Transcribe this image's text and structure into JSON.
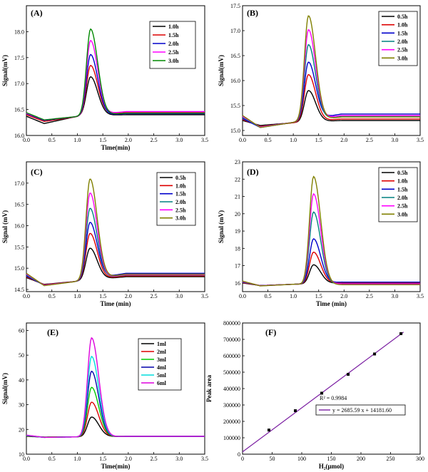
{
  "chart_data": [
    {
      "type": "line",
      "panel_label": "(A)",
      "xlabel": "Time(min)",
      "ylabel": "Signal(mV)",
      "xlim": [
        0,
        3.5
      ],
      "ylim": [
        16.0,
        18.5
      ],
      "xticks": [
        0.0,
        0.5,
        1.0,
        1.5,
        2.0,
        2.5,
        3.0,
        3.5
      ],
      "yticks": [
        16.0,
        16.5,
        17.0,
        17.5,
        18.0
      ],
      "tick_decimals": 1,
      "xtick_labels": [
        "0.0",
        "0.5",
        "1.0",
        "1.5",
        "2.0",
        "2.5",
        "3.0",
        "3.5"
      ],
      "ytick_labels": [
        "16.0",
        "16.5",
        "17.0",
        "17.5",
        "18.0"
      ],
      "legend_position": "top-right",
      "peak_center": 1.28,
      "series": [
        {
          "name": "1.0h",
          "color": "#000000",
          "peak": 17.13,
          "start": 16.37,
          "dip": 16.23,
          "rise": 16.38,
          "end": 16.4
        },
        {
          "name": "1.5h",
          "color": "#dd0000",
          "peak": 17.35,
          "start": 16.4,
          "dip": 16.27,
          "rise": 16.37,
          "end": 16.44
        },
        {
          "name": "2.0h",
          "color": "#0000cc",
          "peak": 17.56,
          "start": 16.42,
          "dip": 16.29,
          "rise": 16.37,
          "end": 16.42
        },
        {
          "name": "2.5h",
          "color": "#ff00ff",
          "peak": 17.83,
          "start": 16.43,
          "dip": 16.3,
          "rise": 16.37,
          "end": 16.46
        },
        {
          "name": "3.0h",
          "color": "#008800",
          "peak": 18.05,
          "start": 16.44,
          "dip": 16.3,
          "rise": 16.37,
          "end": 16.43
        }
      ]
    },
    {
      "type": "line",
      "panel_label": "(B)",
      "xlabel": "",
      "ylabel": "Signal(mV)",
      "xlim": [
        0,
        3.5
      ],
      "ylim": [
        14.9,
        17.5
      ],
      "xticks": [
        0.0,
        0.5,
        1.0,
        1.5,
        2.0,
        2.5,
        3.0,
        3.5
      ],
      "yticks": [
        15.0,
        15.5,
        16.0,
        16.5,
        17.0,
        17.5
      ],
      "tick_decimals": 1,
      "xtick_labels": [
        "0.0",
        "0.5",
        "1.0",
        "1.5",
        "2.0",
        "2.5",
        "3.0",
        "3.5"
      ],
      "ytick_labels": [
        "15.0",
        "15.5",
        "16.0",
        "16.5",
        "17.0",
        "17.5"
      ],
      "legend_position": "top-right",
      "peak_center": 1.32,
      "series": [
        {
          "name": "0.5h",
          "color": "#000000",
          "peak": 15.8,
          "start": 15.2,
          "dip": 15.1,
          "rise": 15.16,
          "end": 15.2
        },
        {
          "name": "1.0h",
          "color": "#dd0000",
          "peak": 16.12,
          "start": 15.22,
          "dip": 15.08,
          "rise": 15.16,
          "end": 15.23
        },
        {
          "name": "1.5h",
          "color": "#0000cc",
          "peak": 16.37,
          "start": 15.24,
          "dip": 15.06,
          "rise": 15.17,
          "end": 15.33
        },
        {
          "name": "2.0h",
          "color": "#008080",
          "peak": 16.72,
          "start": 15.26,
          "dip": 15.07,
          "rise": 15.17,
          "end": 15.28
        },
        {
          "name": "2.5h",
          "color": "#ff00ff",
          "peak": 17.02,
          "start": 15.28,
          "dip": 15.07,
          "rise": 15.17,
          "end": 15.3
        },
        {
          "name": "3.0h",
          "color": "#808000",
          "peak": 17.3,
          "start": 15.3,
          "dip": 15.06,
          "rise": 15.17,
          "end": 15.27
        }
      ]
    },
    {
      "type": "line",
      "panel_label": "(C)",
      "xlabel": "Time (min)",
      "ylabel": "Signal (mV)",
      "xlim": [
        0,
        3.5
      ],
      "ylim": [
        14.45,
        17.5
      ],
      "xticks": [
        0.0,
        0.5,
        1.0,
        1.5,
        2.0,
        2.5,
        3.0,
        3.5
      ],
      "yticks": [
        14.5,
        15.0,
        15.5,
        16.0,
        16.5,
        17.0
      ],
      "tick_decimals": 1,
      "xtick_labels": [
        "0.0",
        "0.5",
        "1.0",
        "1.5",
        "2.0",
        "2.5",
        "3.0",
        "3.5"
      ],
      "ytick_labels": [
        "14.5",
        "15.0",
        "15.5",
        "16.0",
        "16.5",
        "17.0"
      ],
      "legend_position": "top-right",
      "peak_center": 1.27,
      "series": [
        {
          "name": "0.5h",
          "color": "#000000",
          "peak": 15.47,
          "start": 14.78,
          "dip": 14.62,
          "rise": 14.7,
          "end": 14.8
        },
        {
          "name": "1.0h",
          "color": "#dd0000",
          "peak": 15.82,
          "start": 14.8,
          "dip": 14.61,
          "rise": 14.7,
          "end": 14.82
        },
        {
          "name": "1.5h",
          "color": "#0000cc",
          "peak": 16.08,
          "start": 14.82,
          "dip": 14.6,
          "rise": 14.7,
          "end": 14.88
        },
        {
          "name": "2.0h",
          "color": "#008080",
          "peak": 16.41,
          "start": 14.84,
          "dip": 14.6,
          "rise": 14.7,
          "end": 14.84
        },
        {
          "name": "2.5h",
          "color": "#ff00ff",
          "peak": 16.77,
          "start": 14.86,
          "dip": 14.6,
          "rise": 14.7,
          "end": 14.85
        },
        {
          "name": "3.0h",
          "color": "#808000",
          "peak": 17.1,
          "start": 14.88,
          "dip": 14.59,
          "rise": 14.7,
          "end": 14.86
        }
      ]
    },
    {
      "type": "line",
      "panel_label": "(D)",
      "xlabel": "Time (min)",
      "ylabel": "Signal (mV)",
      "xlim": [
        0,
        3.5
      ],
      "ylim": [
        15.5,
        23
      ],
      "xticks": [
        0.0,
        0.5,
        1.0,
        1.5,
        2.0,
        2.5,
        3.0,
        3.5
      ],
      "yticks": [
        16,
        17,
        18,
        19,
        20,
        21,
        22,
        23
      ],
      "tick_decimals": 0,
      "xtick_labels": [
        "0.0",
        "0.5",
        "1.0",
        "1.5",
        "2.0",
        "2.5",
        "3.0",
        "3.5"
      ],
      "ytick_labels": [
        "16",
        "17",
        "18",
        "19",
        "20",
        "21",
        "22",
        "23"
      ],
      "legend_position": "top-right",
      "peak_center": 1.42,
      "series": [
        {
          "name": "0.5h",
          "color": "#000000",
          "peak": 17.05,
          "start": 16.0,
          "dip": 15.85,
          "rise": 15.93,
          "end": 16.0
        },
        {
          "name": "1.0h",
          "color": "#dd0000",
          "peak": 17.78,
          "start": 16.02,
          "dip": 15.85,
          "rise": 15.93,
          "end": 16.02
        },
        {
          "name": "1.5h",
          "color": "#0000cc",
          "peak": 18.55,
          "start": 16.05,
          "dip": 15.85,
          "rise": 15.93,
          "end": 16.05
        },
        {
          "name": "2.0h",
          "color": "#008080",
          "peak": 20.1,
          "start": 16.07,
          "dip": 15.84,
          "rise": 15.93,
          "end": 15.93
        },
        {
          "name": "2.5h",
          "color": "#ff00ff",
          "peak": 21.15,
          "start": 16.09,
          "dip": 15.84,
          "rise": 15.93,
          "end": 15.95
        },
        {
          "name": "3.0h",
          "color": "#808000",
          "peak": 22.15,
          "start": 16.11,
          "dip": 15.83,
          "rise": 15.93,
          "end": 15.9
        }
      ]
    },
    {
      "type": "line",
      "panel_label": "(E)",
      "xlabel": "Time(min)",
      "ylabel": "Signal(mV)",
      "xlim": [
        0,
        3.5
      ],
      "ylim": [
        10,
        63
      ],
      "xticks": [
        0.0,
        0.5,
        1.0,
        1.5,
        2.0,
        2.5,
        3.0,
        3.5
      ],
      "yticks": [
        10,
        20,
        30,
        40,
        50,
        60
      ],
      "tick_decimals": 0,
      "xtick_labels": [
        "0.0",
        "0.5",
        "1.0",
        "1.5",
        "2.0",
        "2.5",
        "3.0",
        "3.5"
      ],
      "ytick_labels": [
        "10",
        "20",
        "30",
        "40",
        "50",
        "60"
      ],
      "legend_position": "top-right",
      "peak_center": 1.3,
      "series": [
        {
          "name": "1ml",
          "color": "#000000",
          "peak": 25.0,
          "start": 17.2,
          "dip": 16.9,
          "rise": 17.0,
          "end": 17.2
        },
        {
          "name": "2ml",
          "color": "#dd0000",
          "peak": 31.0,
          "start": 17.3,
          "dip": 16.9,
          "rise": 17.0,
          "end": 17.2
        },
        {
          "name": "3ml",
          "color": "#00cc00",
          "peak": 37.0,
          "start": 17.4,
          "dip": 16.9,
          "rise": 17.0,
          "end": 17.2
        },
        {
          "name": "4ml",
          "color": "#0000aa",
          "peak": 43.5,
          "start": 17.5,
          "dip": 16.8,
          "rise": 17.0,
          "end": 17.2
        },
        {
          "name": "5ml",
          "color": "#00dddd",
          "peak": 49.5,
          "start": 17.6,
          "dip": 16.8,
          "rise": 17.0,
          "end": 17.2
        },
        {
          "name": "6ml",
          "color": "#dd00dd",
          "peak": 57.0,
          "start": 17.7,
          "dip": 16.8,
          "rise": 17.0,
          "end": 17.2
        }
      ]
    },
    {
      "type": "scatter",
      "panel_label": "(F)",
      "xlabel": "H₂(μmol)",
      "ylabel": "Peak area",
      "xlim": [
        0,
        300
      ],
      "ylim": [
        0,
        800000
      ],
      "xticks": [
        0,
        50,
        100,
        150,
        200,
        250,
        300
      ],
      "yticks": [
        0,
        100000,
        200000,
        300000,
        400000,
        500000,
        600000,
        700000,
        800000
      ],
      "xtick_labels": [
        "0",
        "50",
        "100",
        "150",
        "200",
        "250",
        "300"
      ],
      "ytick_labels": [
        "0",
        "100000",
        "200000",
        "300000",
        "400000",
        "500000",
        "600000",
        "700000",
        "800000"
      ],
      "legend_position": "bottom-right",
      "x": [
        44.6,
        89.2,
        133.8,
        178.4,
        223.0,
        267.6
      ],
      "y": [
        147000,
        265000,
        372000,
        487000,
        611000,
        735000
      ],
      "point_color": "#000000",
      "fit": {
        "slope": 2685.59,
        "intercept": 14181.6,
        "color": "#7b1fa2"
      },
      "r2_text": "R² = 0.9984",
      "equation_text": "y = 2685.59 x + 14181.60"
    }
  ]
}
